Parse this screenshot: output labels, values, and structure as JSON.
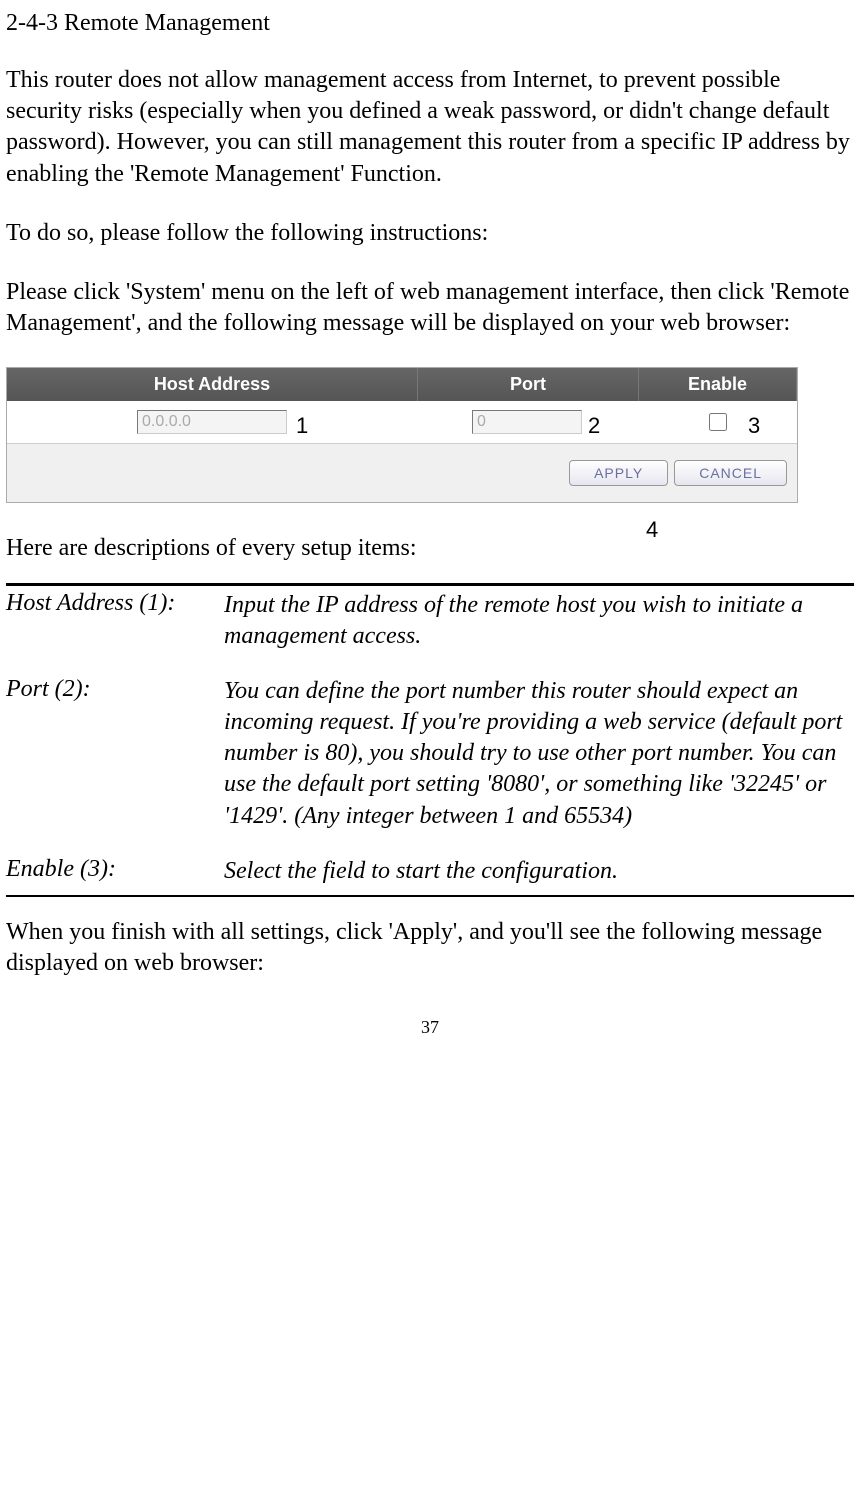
{
  "section_title": "2-4-3 Remote Management",
  "para1": "This router does not allow management access from Internet, to prevent possible security risks (especially when you defined a weak password, or didn't change default password). However, you can still management this router from a specific IP address by enabling the 'Remote Management' Function.",
  "para2": "To do so, please follow the following instructions:",
  "para3": "Please click 'System' menu on the left of web management interface, then click 'Remote Management', and the following message will be displayed on your web browser:",
  "screenshot": {
    "headers": {
      "host": "Host Address",
      "port": "Port",
      "enable": "Enable"
    },
    "values": {
      "host": "0.0.0.0",
      "port": "0"
    },
    "buttons": {
      "apply": "APPLY",
      "cancel": "CANCEL"
    },
    "overlay": {
      "n1": "1",
      "n2": "2",
      "n3": "3",
      "n4": "4"
    },
    "colors": {
      "header_bg": "#5a5a5a",
      "header_text": "#ffffff",
      "panel_bg": "#f0f0f0",
      "btn_text": "#6a6fa0"
    }
  },
  "desc_intro": "Here are descriptions of every setup items:",
  "definitions": [
    {
      "label": "Host Address (1):",
      "text": "Input the IP address of the remote host you wish to initiate a management access."
    },
    {
      "label": "Port (2):",
      "text": "You can define the port number this router should expect an incoming request. If you're providing a web service (default port number is 80), you should try to use other port number. You can use the default port setting '8080', or something like '32245' or '1429'. (Any integer between 1 and 65534)"
    },
    {
      "label": "Enable (3):",
      "text": "Select the field to start the configuration."
    }
  ],
  "after_para": "When you finish with all settings, click 'Apply', and you'll see the following message displayed on web browser:",
  "page_number": "37"
}
